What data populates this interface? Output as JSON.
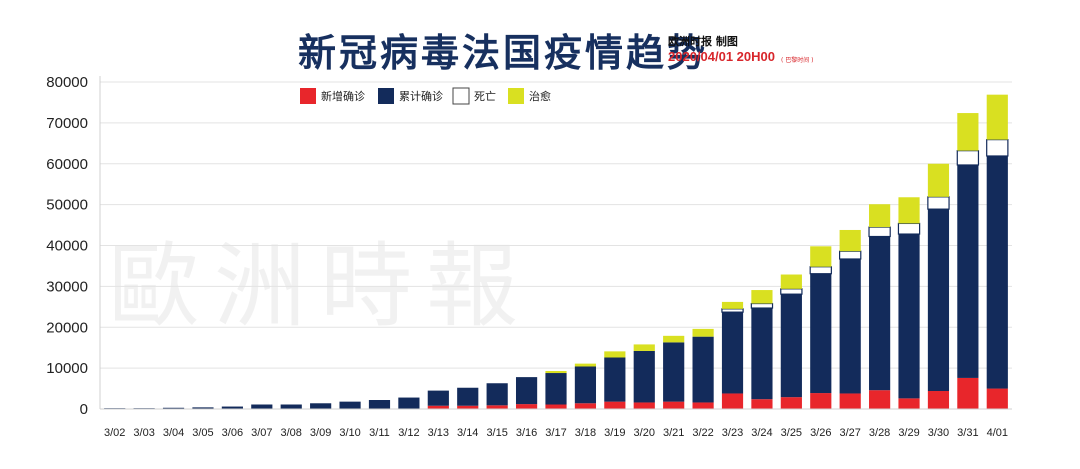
{
  "header": {
    "title": "新冠病毒法国疫情趋势",
    "source": "欧洲时报 制图",
    "timestamp": "2020/04/01 20H00",
    "timestamp_note": "( 巴黎时间 )"
  },
  "watermark": {
    "text": "歐洲時報"
  },
  "colors": {
    "new_cases": "#e8262b",
    "cumulative": "#132b5b",
    "deaths": "#ffffff",
    "recovered": "#d9e021",
    "title": "#17305f",
    "timestamp": "#d8262b",
    "grid": "#e3e3e3"
  },
  "chart_data": {
    "type": "bar",
    "stacked": true,
    "title": "新冠病毒法国疫情趋势",
    "xlabel": "",
    "ylabel": "",
    "ylim": [
      0,
      80000
    ],
    "yticks": [
      0,
      10000,
      20000,
      30000,
      40000,
      50000,
      60000,
      70000,
      80000
    ],
    "grid": true,
    "legend_position": "top-center",
    "categories": [
      "3/02",
      "3/03",
      "3/04",
      "3/05",
      "3/06",
      "3/07",
      "3/08",
      "3/09",
      "3/10",
      "3/11",
      "3/12",
      "3/13",
      "3/14",
      "3/15",
      "3/16",
      "3/17",
      "3/18",
      "3/19",
      "3/20",
      "3/21",
      "3/22",
      "3/23",
      "3/24",
      "3/25",
      "3/26",
      "3/27",
      "3/28",
      "3/29",
      "3/30",
      "3/31",
      "4/01"
    ],
    "series": [
      {
        "name": "新增确诊",
        "color": "#e8262b",
        "values": [
          0,
          0,
          0,
          0,
          0,
          0,
          0,
          0,
          0,
          0,
          0,
          800,
          800,
          900,
          1200,
          1100,
          1400,
          1800,
          1600,
          1800,
          1600,
          3800,
          2400,
          2900,
          3900,
          3800,
          4600,
          2600,
          4400,
          7600,
          5000
        ]
      },
      {
        "name": "累计确诊",
        "color": "#132b5b",
        "values": [
          200,
          200,
          300,
          400,
          600,
          1100,
          1100,
          1400,
          1800,
          2200,
          2800,
          3700,
          4400,
          5400,
          6600,
          7700,
          9000,
          10800,
          12600,
          14500,
          16100,
          19900,
          22300,
          25200,
          29200,
          32900,
          37600,
          40200,
          44500,
          52100,
          56900
        ]
      },
      {
        "name": "死亡",
        "color": "#ffffff",
        "values": [
          0,
          0,
          0,
          0,
          0,
          0,
          0,
          0,
          0,
          0,
          0,
          0,
          0,
          0,
          0,
          0,
          0,
          0,
          0,
          0,
          0,
          800,
          1100,
          1300,
          1700,
          1900,
          2300,
          2600,
          3000,
          3500,
          4000
        ]
      },
      {
        "name": "治愈",
        "color": "#d9e021",
        "values": [
          0,
          0,
          0,
          0,
          0,
          0,
          0,
          0,
          0,
          0,
          0,
          0,
          0,
          0,
          0,
          500,
          700,
          1500,
          1600,
          1600,
          1900,
          1700,
          3300,
          3500,
          5000,
          5200,
          5600,
          6400,
          8100,
          9200,
          11000
        ]
      }
    ]
  }
}
